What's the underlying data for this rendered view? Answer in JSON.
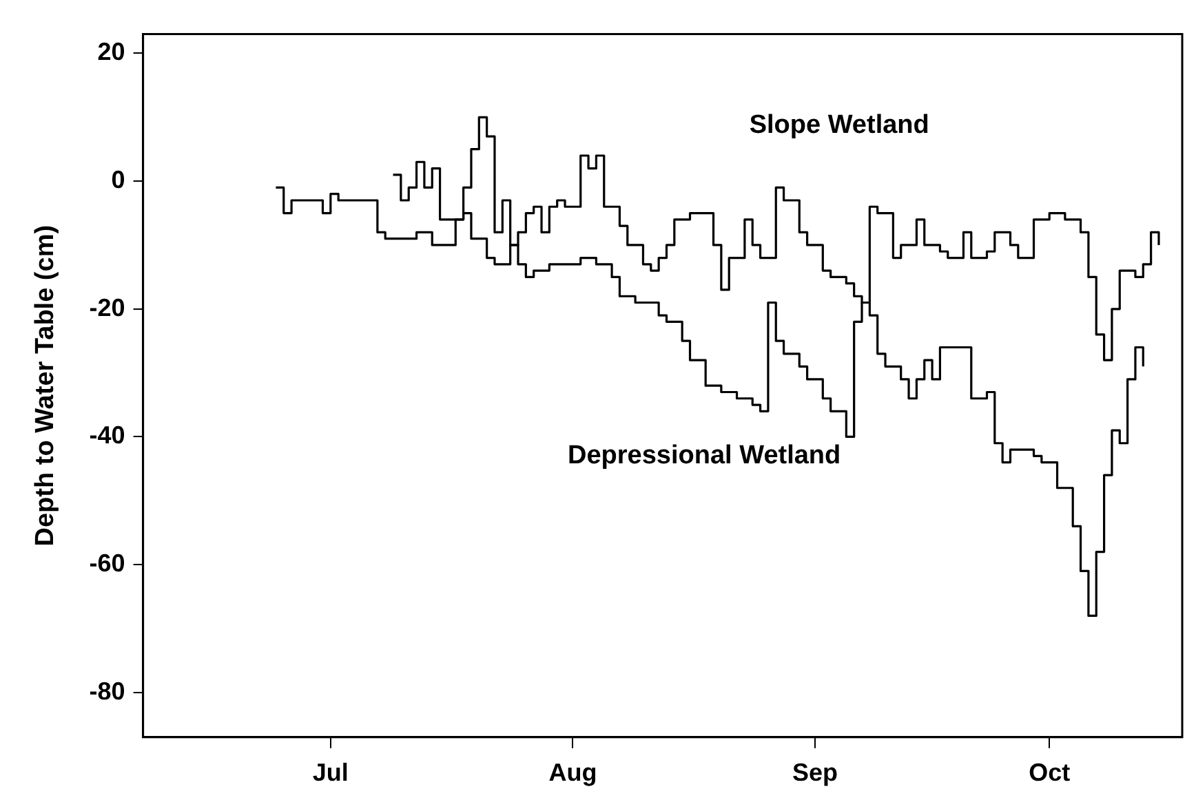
{
  "chart_data": {
    "type": "step",
    "ylabel": "Depth to Water Table (cm)",
    "xlim": [
      "--06-07",
      "--10-18"
    ],
    "xticks": [
      {
        "value": "--07-01",
        "label": "Jul"
      },
      {
        "value": "--08-01",
        "label": "Aug"
      },
      {
        "value": "--09-01",
        "label": "Sep"
      },
      {
        "value": "--10-01",
        "label": "Oct"
      }
    ],
    "ylim": [
      -87,
      23
    ],
    "yticks": [
      20,
      0,
      -20,
      -40,
      -60,
      -80
    ],
    "grid": false,
    "legend": false,
    "marker": "none",
    "line_style": "solid",
    "series": [
      {
        "name": "Slope Wetland",
        "color": "#000000",
        "x": [
          "--07-09",
          "--07-10",
          "--07-11",
          "--07-12",
          "--07-13",
          "--07-14",
          "--07-15",
          "--07-16",
          "--07-18",
          "--07-19",
          "--07-20",
          "--07-21",
          "--07-22",
          "--07-23",
          "--07-24",
          "--07-25",
          "--07-26",
          "--07-27",
          "--07-28",
          "--07-29",
          "--07-30",
          "--07-31",
          "--08-01",
          "--08-02",
          "--08-03",
          "--08-04",
          "--08-05",
          "--08-07",
          "--08-08",
          "--08-10",
          "--08-11",
          "--08-12",
          "--08-13",
          "--08-14",
          "--08-16",
          "--08-17",
          "--08-19",
          "--08-20",
          "--08-21",
          "--08-23",
          "--08-24",
          "--08-25",
          "--08-27",
          "--08-28",
          "--08-30",
          "--08-31",
          "--09-02",
          "--09-03",
          "--09-05",
          "--09-06",
          "--09-07",
          "--09-08",
          "--09-09",
          "--09-11",
          "--09-12",
          "--09-14",
          "--09-15",
          "--09-17",
          "--09-18",
          "--09-20",
          "--09-21",
          "--09-23",
          "--09-24",
          "--09-26",
          "--09-27",
          "--09-29",
          "--09-30",
          "--10-01",
          "--10-03",
          "--10-05",
          "--10-06",
          "--10-07",
          "--10-08",
          "--10-09",
          "--10-10",
          "--10-12",
          "--10-13",
          "--10-14",
          "--10-15"
        ],
        "values": [
          1,
          -3,
          -1,
          3,
          -1,
          2,
          -6,
          -6,
          -1,
          5,
          10,
          7,
          -8,
          -3,
          -10,
          -8,
          -5,
          -4,
          -8,
          -4,
          -3,
          -4,
          -4,
          4,
          2,
          4,
          -4,
          -7,
          -10,
          -13,
          -14,
          -12,
          -10,
          -6,
          -5,
          -5,
          -10,
          -17,
          -12,
          -6,
          -10,
          -12,
          -1,
          -3,
          -8,
          -10,
          -14,
          -15,
          -16,
          -18,
          -19,
          -4,
          -5,
          -12,
          -10,
          -6,
          -10,
          -11,
          -12,
          -8,
          -12,
          -11,
          -8,
          -10,
          -12,
          -6,
          -6,
          -5,
          -6,
          -8,
          -15,
          -24,
          -28,
          -20,
          -14,
          -15,
          -13,
          -8,
          -10
        ]
      },
      {
        "name": "Depressional Wetland",
        "color": "#000000",
        "x": [
          "--06-24",
          "--06-25",
          "--06-26",
          "--06-27",
          "--06-29",
          "--06-30",
          "--07-01",
          "--07-02",
          "--07-04",
          "--07-06",
          "--07-07",
          "--07-08",
          "--07-10",
          "--07-12",
          "--07-14",
          "--07-16",
          "--07-17",
          "--07-18",
          "--07-19",
          "--07-21",
          "--07-22",
          "--07-24",
          "--07-25",
          "--07-26",
          "--07-27",
          "--07-29",
          "--07-31",
          "--08-02",
          "--08-04",
          "--08-06",
          "--08-07",
          "--08-09",
          "--08-12",
          "--08-13",
          "--08-15",
          "--08-16",
          "--08-18",
          "--08-20",
          "--08-22",
          "--08-24",
          "--08-25",
          "--08-26",
          "--08-27",
          "--08-28",
          "--08-30",
          "--08-31",
          "--09-02",
          "--09-03",
          "--09-05",
          "--09-06",
          "--09-07",
          "--09-08",
          "--09-09",
          "--09-10",
          "--09-12",
          "--09-13",
          "--09-14",
          "--09-15",
          "--09-16",
          "--09-17",
          "--09-19",
          "--09-21",
          "--09-23",
          "--09-24",
          "--09-25",
          "--09-26",
          "--09-27",
          "--09-29",
          "--09-30",
          "--10-02",
          "--10-04",
          "--10-05",
          "--10-06",
          "--10-07",
          "--10-08",
          "--10-09",
          "--10-10",
          "--10-11",
          "--10-12",
          "--10-13"
        ],
        "values": [
          -1,
          -5,
          -3,
          -3,
          -3,
          -5,
          -2,
          -3,
          -3,
          -3,
          -8,
          -9,
          -9,
          -8,
          -10,
          -10,
          -6,
          -5,
          -9,
          -12,
          -13,
          -10,
          -13,
          -15,
          -14,
          -13,
          -13,
          -12,
          -13,
          -15,
          -18,
          -19,
          -21,
          -22,
          -25,
          -28,
          -32,
          -33,
          -34,
          -35,
          -36,
          -19,
          -25,
          -27,
          -29,
          -31,
          -34,
          -36,
          -40,
          -22,
          -19,
          -21,
          -27,
          -29,
          -31,
          -34,
          -31,
          -28,
          -31,
          -26,
          -26,
          -34,
          -33,
          -41,
          -44,
          -42,
          -42,
          -43,
          -44,
          -48,
          -54,
          -61,
          -68,
          -58,
          -46,
          -39,
          -41,
          -31,
          -26,
          -29
        ]
      }
    ]
  }
}
